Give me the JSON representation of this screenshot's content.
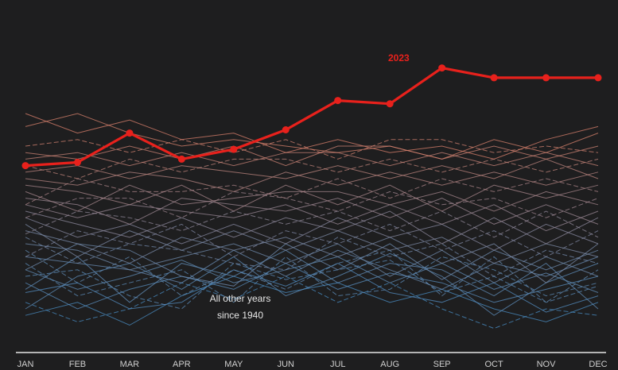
{
  "chart_data": {
    "type": "line",
    "categories": [
      "JAN",
      "FEB",
      "MAR",
      "APR",
      "MAY",
      "JUN",
      "JUL",
      "AUG",
      "SEP",
      "OCT",
      "NOV",
      "DEC"
    ],
    "ylim": [
      0,
      1
    ],
    "highlight": {
      "name": "2023",
      "color": "#e8211c",
      "values": [
        0.54,
        0.55,
        0.64,
        0.56,
        0.59,
        0.65,
        0.74,
        0.73,
        0.84,
        0.81,
        0.81,
        0.81
      ]
    },
    "background_group": {
      "note_line1": "All other years",
      "note_line2": "since 1940",
      "color_old": "#4a8fc7",
      "color_recent": "#e0826a",
      "series_values": [
        [
          0.08,
          0.12,
          0.05,
          0.14,
          0.2,
          0.15,
          0.18,
          0.12,
          0.16,
          0.1,
          0.06,
          0.12
        ],
        [
          0.12,
          0.06,
          0.1,
          0.18,
          0.13,
          0.2,
          0.12,
          0.18,
          0.1,
          0.04,
          0.1,
          0.08
        ],
        [
          0.15,
          0.18,
          0.1,
          0.12,
          0.22,
          0.17,
          0.24,
          0.15,
          0.12,
          0.18,
          0.09,
          0.14
        ],
        [
          0.18,
          0.1,
          0.16,
          0.2,
          0.16,
          0.24,
          0.16,
          0.21,
          0.18,
          0.12,
          0.16,
          0.2
        ],
        [
          0.2,
          0.22,
          0.14,
          0.1,
          0.24,
          0.19,
          0.22,
          0.25,
          0.15,
          0.2,
          0.12,
          0.17
        ],
        [
          0.22,
          0.16,
          0.2,
          0.25,
          0.18,
          0.22,
          0.26,
          0.18,
          0.24,
          0.16,
          0.21,
          0.15
        ],
        [
          0.1,
          0.2,
          0.24,
          0.16,
          0.26,
          0.14,
          0.2,
          0.27,
          0.2,
          0.08,
          0.18,
          0.24
        ],
        [
          0.24,
          0.14,
          0.18,
          0.22,
          0.12,
          0.26,
          0.14,
          0.16,
          0.26,
          0.22,
          0.14,
          0.18
        ],
        [
          0.26,
          0.24,
          0.22,
          0.18,
          0.28,
          0.2,
          0.28,
          0.22,
          0.16,
          0.24,
          0.2,
          0.26
        ],
        [
          0.16,
          0.26,
          0.12,
          0.24,
          0.2,
          0.28,
          0.18,
          0.24,
          0.22,
          0.14,
          0.24,
          0.1
        ],
        [
          0.28,
          0.18,
          0.26,
          0.14,
          0.22,
          0.16,
          0.24,
          0.28,
          0.14,
          0.26,
          0.12,
          0.22
        ],
        [
          0.3,
          0.28,
          0.22,
          0.26,
          0.3,
          0.24,
          0.3,
          0.2,
          0.28,
          0.18,
          0.26,
          0.2
        ],
        [
          0.22,
          0.3,
          0.28,
          0.2,
          0.17,
          0.3,
          0.22,
          0.3,
          0.19,
          0.28,
          0.22,
          0.28
        ],
        [
          0.32,
          0.24,
          0.3,
          0.28,
          0.24,
          0.22,
          0.32,
          0.26,
          0.3,
          0.2,
          0.28,
          0.24
        ],
        [
          0.34,
          0.3,
          0.24,
          0.32,
          0.28,
          0.32,
          0.26,
          0.32,
          0.24,
          0.3,
          0.18,
          0.3
        ],
        [
          0.36,
          0.26,
          0.34,
          0.28,
          0.34,
          0.28,
          0.34,
          0.28,
          0.32,
          0.24,
          0.3,
          0.26
        ],
        [
          0.26,
          0.34,
          0.3,
          0.36,
          0.26,
          0.34,
          0.3,
          0.36,
          0.28,
          0.34,
          0.26,
          0.34
        ],
        [
          0.38,
          0.32,
          0.36,
          0.3,
          0.36,
          0.3,
          0.38,
          0.32,
          0.36,
          0.28,
          0.36,
          0.3
        ],
        [
          0.4,
          0.36,
          0.32,
          0.38,
          0.32,
          0.38,
          0.34,
          0.4,
          0.3,
          0.38,
          0.3,
          0.38
        ],
        [
          0.33,
          0.4,
          0.38,
          0.34,
          0.4,
          0.36,
          0.4,
          0.34,
          0.4,
          0.32,
          0.4,
          0.32
        ],
        [
          0.42,
          0.38,
          0.42,
          0.4,
          0.38,
          0.42,
          0.36,
          0.42,
          0.36,
          0.42,
          0.34,
          0.4
        ],
        [
          0.44,
          0.42,
          0.36,
          0.44,
          0.42,
          0.4,
          0.44,
          0.38,
          0.44,
          0.36,
          0.42,
          0.36
        ],
        [
          0.38,
          0.44,
          0.44,
          0.38,
          0.46,
          0.44,
          0.4,
          0.46,
          0.42,
          0.44,
          0.38,
          0.44
        ],
        [
          0.46,
          0.4,
          0.48,
          0.42,
          0.44,
          0.46,
          0.46,
          0.42,
          0.46,
          0.4,
          0.46,
          0.42
        ],
        [
          0.48,
          0.46,
          0.42,
          0.48,
          0.4,
          0.48,
          0.42,
          0.48,
          0.4,
          0.48,
          0.44,
          0.48
        ],
        [
          0.42,
          0.5,
          0.46,
          0.46,
          0.48,
          0.44,
          0.5,
          0.44,
          0.5,
          0.46,
          0.5,
          0.46
        ],
        [
          0.5,
          0.48,
          0.52,
          0.5,
          0.46,
          0.52,
          0.48,
          0.52,
          0.48,
          0.52,
          0.48,
          0.52
        ],
        [
          0.52,
          0.54,
          0.5,
          0.54,
          0.52,
          0.5,
          0.54,
          0.5,
          0.54,
          0.5,
          0.56,
          0.5
        ],
        [
          0.54,
          0.5,
          0.56,
          0.52,
          0.56,
          0.56,
          0.52,
          0.56,
          0.52,
          0.56,
          0.52,
          0.56
        ],
        [
          0.56,
          0.58,
          0.54,
          0.58,
          0.54,
          0.58,
          0.58,
          0.54,
          0.58,
          0.54,
          0.58,
          0.54
        ],
        [
          0.58,
          0.56,
          0.6,
          0.56,
          0.6,
          0.54,
          0.6,
          0.6,
          0.56,
          0.6,
          0.56,
          0.6
        ],
        [
          0.6,
          0.62,
          0.58,
          0.62,
          0.58,
          0.62,
          0.56,
          0.62,
          0.62,
          0.58,
          0.6,
          0.58
        ],
        [
          0.66,
          0.7,
          0.64,
          0.6,
          0.62,
          0.6,
          0.58,
          0.6,
          0.56,
          0.62,
          0.58,
          0.64
        ],
        [
          0.7,
          0.64,
          0.68,
          0.62,
          0.64,
          0.58,
          0.62,
          0.58,
          0.6,
          0.56,
          0.62,
          0.66
        ]
      ]
    }
  }
}
